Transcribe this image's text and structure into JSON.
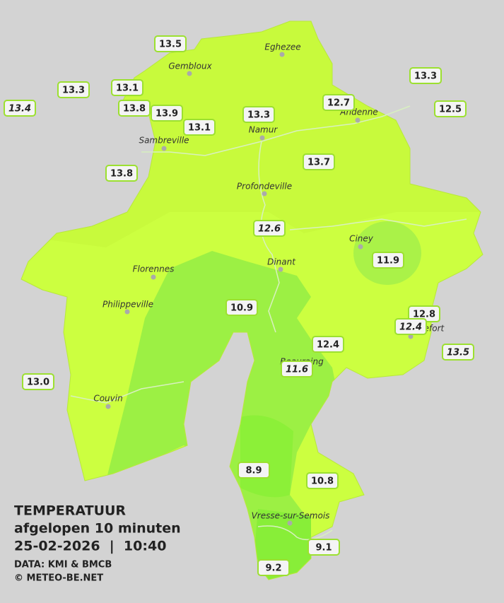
{
  "towns": [
    "Eghezee",
    "Gembloux",
    "Andenne",
    "Namur",
    "Sambreville",
    "Profondeville",
    "Ciney",
    "Dinant",
    "Florennes",
    "Philippeville",
    "Rochefort",
    "Beauraing",
    "Couvin",
    "Vresse-sur-Semois"
  ],
  "readings": [
    "13.5",
    "13.3",
    "13.1",
    "13.4",
    "13.8",
    "13.9",
    "13.1",
    "13.3",
    "12.7",
    "13.3",
    "12.5",
    "13.8",
    "13.7",
    "12.6",
    "11.9",
    "10.9",
    "12.8",
    "12.4",
    "12.4",
    "13.5",
    "11.6",
    "13.0",
    "8.9",
    "10.8",
    "9.1",
    "9.2"
  ],
  "legend": {
    "title": "TEMPERATUUR",
    "subtitle": "afgelopen 10 minuten",
    "timestamp": "25-02-2026  |  10:40",
    "source": "DATA: KMI & BMCB",
    "credit": "© METEO-BE.NET"
  }
}
